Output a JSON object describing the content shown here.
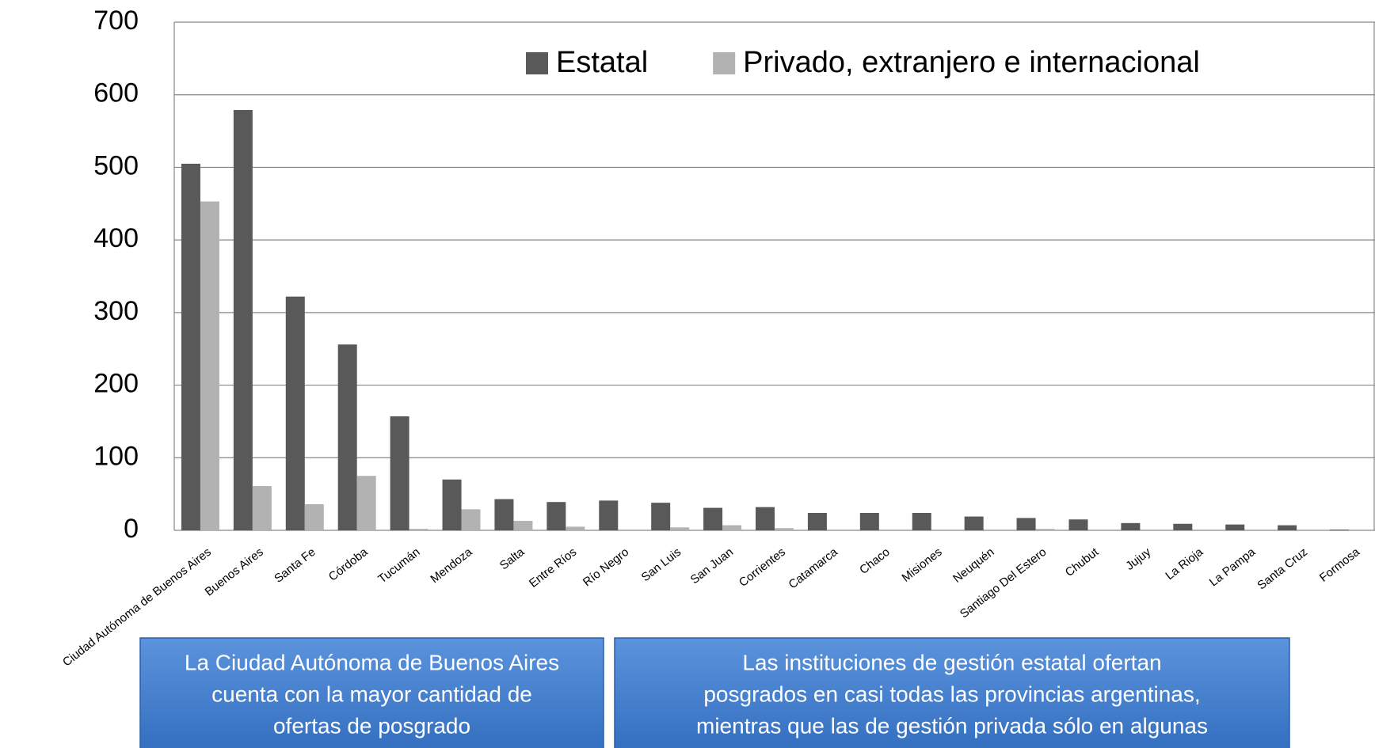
{
  "chart_data": {
    "type": "bar",
    "categories": [
      "Ciudad Autónoma de Buenos Aires",
      "Buenos Aires",
      "Santa Fe",
      "Córdoba",
      "Tucumán",
      "Mendoza",
      "Salta",
      "Entre Ríos",
      "Río Negro",
      "San Luis",
      "San Juan",
      "Corrientes",
      "Catamarca",
      "Chaco",
      "Misiones",
      "Neuquén",
      "Santiago Del Estero",
      "Chubut",
      "Jujuy",
      "La Rioja",
      "La Pampa",
      "Santa Cruz",
      "Formosa"
    ],
    "series": [
      {
        "name": "Estatal",
        "color": "#595959",
        "values": [
          505,
          579,
          322,
          256,
          157,
          70,
          43,
          39,
          41,
          38,
          31,
          32,
          24,
          24,
          24,
          19,
          17,
          15,
          10,
          9,
          8,
          7,
          1
        ]
      },
      {
        "name": "Privado, extranjero e internacional",
        "color": "#b2b2b2",
        "values": [
          453,
          61,
          36,
          75,
          2,
          29,
          13,
          5,
          0,
          4,
          7,
          3,
          0,
          0,
          0,
          0,
          2,
          0,
          0,
          0,
          0,
          0,
          0
        ]
      }
    ],
    "ylim": [
      0,
      700
    ],
    "yticks": [
      0,
      100,
      200,
      300,
      400,
      500,
      600,
      700
    ],
    "grid": true,
    "annotations": [
      [
        "La Ciudad Autónoma de Buenos Aires",
        "cuenta con la mayor cantidad de",
        "ofertas de posgrado"
      ],
      [
        "Las instituciones de gestión estatal ofertan",
        "posgrados en casi todas las provincias argentinas,",
        "mientras que las de gestión privada sólo en algunas"
      ]
    ]
  }
}
